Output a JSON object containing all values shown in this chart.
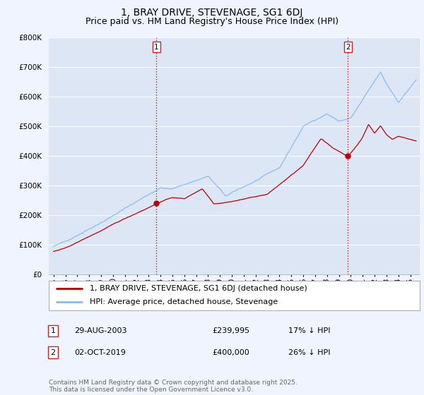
{
  "title": "1, BRAY DRIVE, STEVENAGE, SG1 6DJ",
  "subtitle": "Price paid vs. HM Land Registry's House Price Index (HPI)",
  "ylim": [
    0,
    800000
  ],
  "yticks": [
    0,
    100000,
    200000,
    300000,
    400000,
    500000,
    600000,
    700000,
    800000
  ],
  "ytick_labels": [
    "£0",
    "£100K",
    "£200K",
    "£300K",
    "£400K",
    "£500K",
    "£600K",
    "£700K",
    "£800K"
  ],
  "xlim_start": 1994.6,
  "xlim_end": 2025.8,
  "background_color": "#f0f4ff",
  "plot_bg_color": "#dce6f5",
  "grid_color": "#ffffff",
  "line1_color": "#bb0000",
  "line2_color": "#88bbee",
  "vline_color": "#cc2222",
  "marker1_date_x": 2003.66,
  "marker1_y": 239995,
  "marker2_date_x": 2019.75,
  "marker2_y": 400000,
  "legend_line1": "1, BRAY DRIVE, STEVENAGE, SG1 6DJ (detached house)",
  "legend_line2": "HPI: Average price, detached house, Stevenage",
  "annotation1_num": "1",
  "annotation1_date": "29-AUG-2003",
  "annotation1_price": "£239,995",
  "annotation1_hpi": "17% ↓ HPI",
  "annotation2_num": "2",
  "annotation2_date": "02-OCT-2019",
  "annotation2_price": "£400,000",
  "annotation2_hpi": "26% ↓ HPI",
  "footer": "Contains HM Land Registry data © Crown copyright and database right 2025.\nThis data is licensed under the Open Government Licence v3.0.",
  "title_fontsize": 10,
  "subtitle_fontsize": 9,
  "tick_fontsize": 7.5,
  "legend_fontsize": 8,
  "annotation_fontsize": 8,
  "footer_fontsize": 6.5
}
